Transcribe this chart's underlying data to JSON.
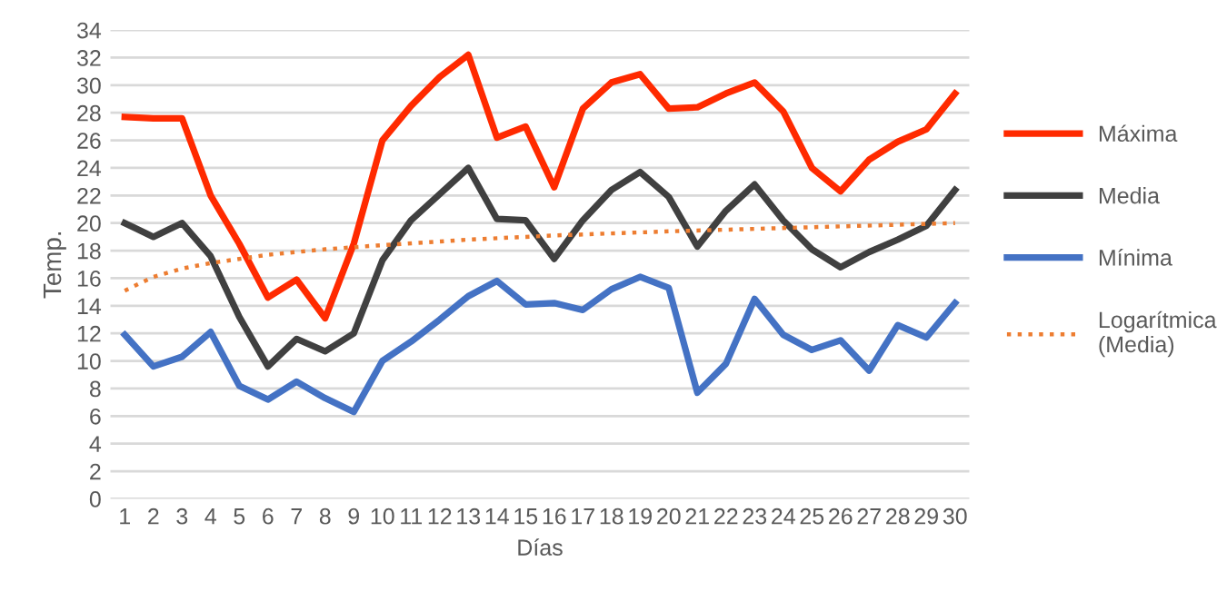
{
  "chart_data": {
    "type": "line",
    "xlabel": "Días",
    "ylabel": "Temp.",
    "x": [
      1,
      2,
      3,
      4,
      5,
      6,
      7,
      8,
      9,
      10,
      11,
      12,
      13,
      14,
      15,
      16,
      17,
      18,
      19,
      20,
      21,
      22,
      23,
      24,
      25,
      26,
      27,
      28,
      29,
      30
    ],
    "xlim": [
      0.5,
      30.5
    ],
    "xticks": [
      1,
      2,
      3,
      4,
      5,
      6,
      7,
      8,
      9,
      10,
      11,
      12,
      13,
      14,
      15,
      16,
      17,
      18,
      19,
      20,
      21,
      22,
      23,
      24,
      25,
      26,
      27,
      28,
      29,
      30
    ],
    "ylim": [
      0,
      34
    ],
    "yticks": [
      0,
      2,
      4,
      6,
      8,
      10,
      12,
      14,
      16,
      18,
      20,
      22,
      24,
      26,
      28,
      30,
      32,
      34
    ],
    "grid": "y",
    "legend": "right",
    "marker": "none",
    "series": [
      {
        "name": "Máxima",
        "color": "#ff2a00",
        "line_style": "solid",
        "values": [
          27.7,
          27.6,
          27.6,
          22,
          18.5,
          14.6,
          15.9,
          13.1,
          18.5,
          26,
          28.5,
          30.6,
          32.2,
          26.2,
          27,
          22.6,
          28.3,
          30.2,
          30.8,
          28.3,
          28.4,
          29.4,
          30.2,
          28.1,
          24,
          22.3,
          24.6,
          25.9,
          26.8,
          29.4
        ]
      },
      {
        "name": "Media",
        "color": "#404040",
        "line_style": "solid",
        "values": [
          20,
          19,
          20,
          17.6,
          13.2,
          9.6,
          11.6,
          10.7,
          12,
          17.3,
          20.2,
          22.1,
          24,
          20.3,
          20.2,
          17.4,
          20.2,
          22.4,
          23.7,
          21.9,
          18.3,
          20.9,
          22.8,
          20.2,
          18.1,
          16.8,
          17.9,
          18.8,
          19.8,
          22.4
        ]
      },
      {
        "name": "Mínima",
        "color": "#4472c4",
        "line_style": "solid",
        "values": [
          11.9,
          9.6,
          10.3,
          12.1,
          8.2,
          7.2,
          8.5,
          7.3,
          6.3,
          10,
          11.4,
          13,
          14.7,
          15.8,
          14.1,
          14.2,
          13.7,
          15.2,
          16.1,
          15.3,
          7.7,
          9.8,
          14.5,
          11.9,
          10.8,
          11.5,
          9.3,
          12.6,
          11.7,
          14.2
        ]
      },
      {
        "name": "Logarítmica (Media)",
        "color": "#ed7d31",
        "line_style": "dotted",
        "x": [
          1,
          2,
          3,
          4,
          5,
          6,
          8,
          10,
          13,
          16,
          20,
          25,
          30
        ],
        "values": [
          15.1,
          16.1,
          16.7,
          17.1,
          17.4,
          17.7,
          18.1,
          18.4,
          18.8,
          19.1,
          19.4,
          19.7,
          20.0
        ]
      }
    ]
  }
}
